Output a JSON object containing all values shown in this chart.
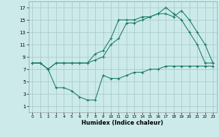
{
  "background_color": "#cceaea",
  "grid_color": "#aacccc",
  "line_color": "#1a7a6a",
  "xlabel": "Humidex (Indice chaleur)",
  "xlim": [
    -0.5,
    23.5
  ],
  "ylim": [
    0,
    18
  ],
  "xticks": [
    0,
    1,
    2,
    3,
    4,
    5,
    6,
    7,
    8,
    9,
    10,
    11,
    12,
    13,
    14,
    15,
    16,
    17,
    18,
    19,
    20,
    21,
    22,
    23
  ],
  "yticks": [
    1,
    3,
    5,
    7,
    9,
    11,
    13,
    15,
    17
  ],
  "series1_x": [
    0,
    1,
    2,
    3,
    4,
    5,
    6,
    7,
    8,
    9,
    10,
    11,
    12,
    13,
    14,
    15,
    16,
    17,
    18,
    19,
    20,
    21,
    22,
    23
  ],
  "series1_y": [
    8,
    8,
    7,
    8,
    8,
    8,
    8,
    8,
    9.5,
    10,
    12,
    15,
    15,
    15,
    15.5,
    15.5,
    16,
    17,
    16,
    15,
    13,
    11,
    8,
    8
  ],
  "series2_x": [
    0,
    1,
    2,
    3,
    4,
    5,
    6,
    7,
    8,
    9,
    10,
    11,
    12,
    13,
    14,
    15,
    16,
    17,
    18,
    19,
    20,
    21,
    22,
    23
  ],
  "series2_y": [
    8,
    8,
    7,
    8,
    8,
    8,
    8,
    8,
    8.5,
    9,
    11,
    12,
    14.5,
    14.5,
    15,
    15.5,
    16,
    16,
    15.5,
    16.5,
    15,
    13,
    11,
    8
  ],
  "series3_x": [
    0,
    1,
    2,
    3,
    4,
    5,
    6,
    7,
    8,
    9,
    10,
    11,
    12,
    13,
    14,
    15,
    16,
    17,
    18,
    19,
    20,
    21,
    22,
    23
  ],
  "series3_y": [
    8,
    8,
    7,
    4,
    4,
    3.5,
    2.5,
    2,
    2,
    6,
    5.5,
    5.5,
    6,
    6.5,
    6.5,
    7,
    7,
    7.5,
    7.5,
    7.5,
    7.5,
    7.5,
    7.5,
    7.5
  ]
}
